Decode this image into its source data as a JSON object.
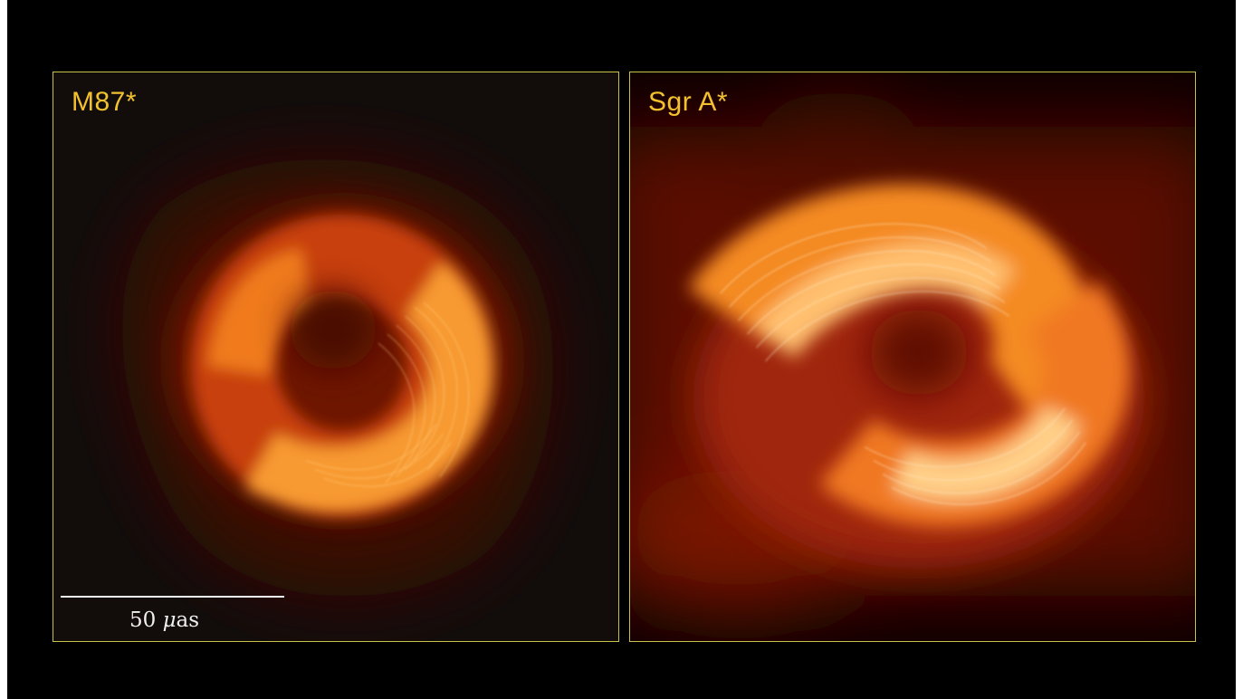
{
  "panels": [
    {
      "label": "M87*",
      "scale_bar": {
        "value": "50",
        "unit_symbol": "μ",
        "unit_rest": "as"
      }
    },
    {
      "label": "Sgr A*"
    }
  ],
  "colors": {
    "frame": "#c9c24a",
    "label": "#f2c12e",
    "background": "#000000"
  }
}
